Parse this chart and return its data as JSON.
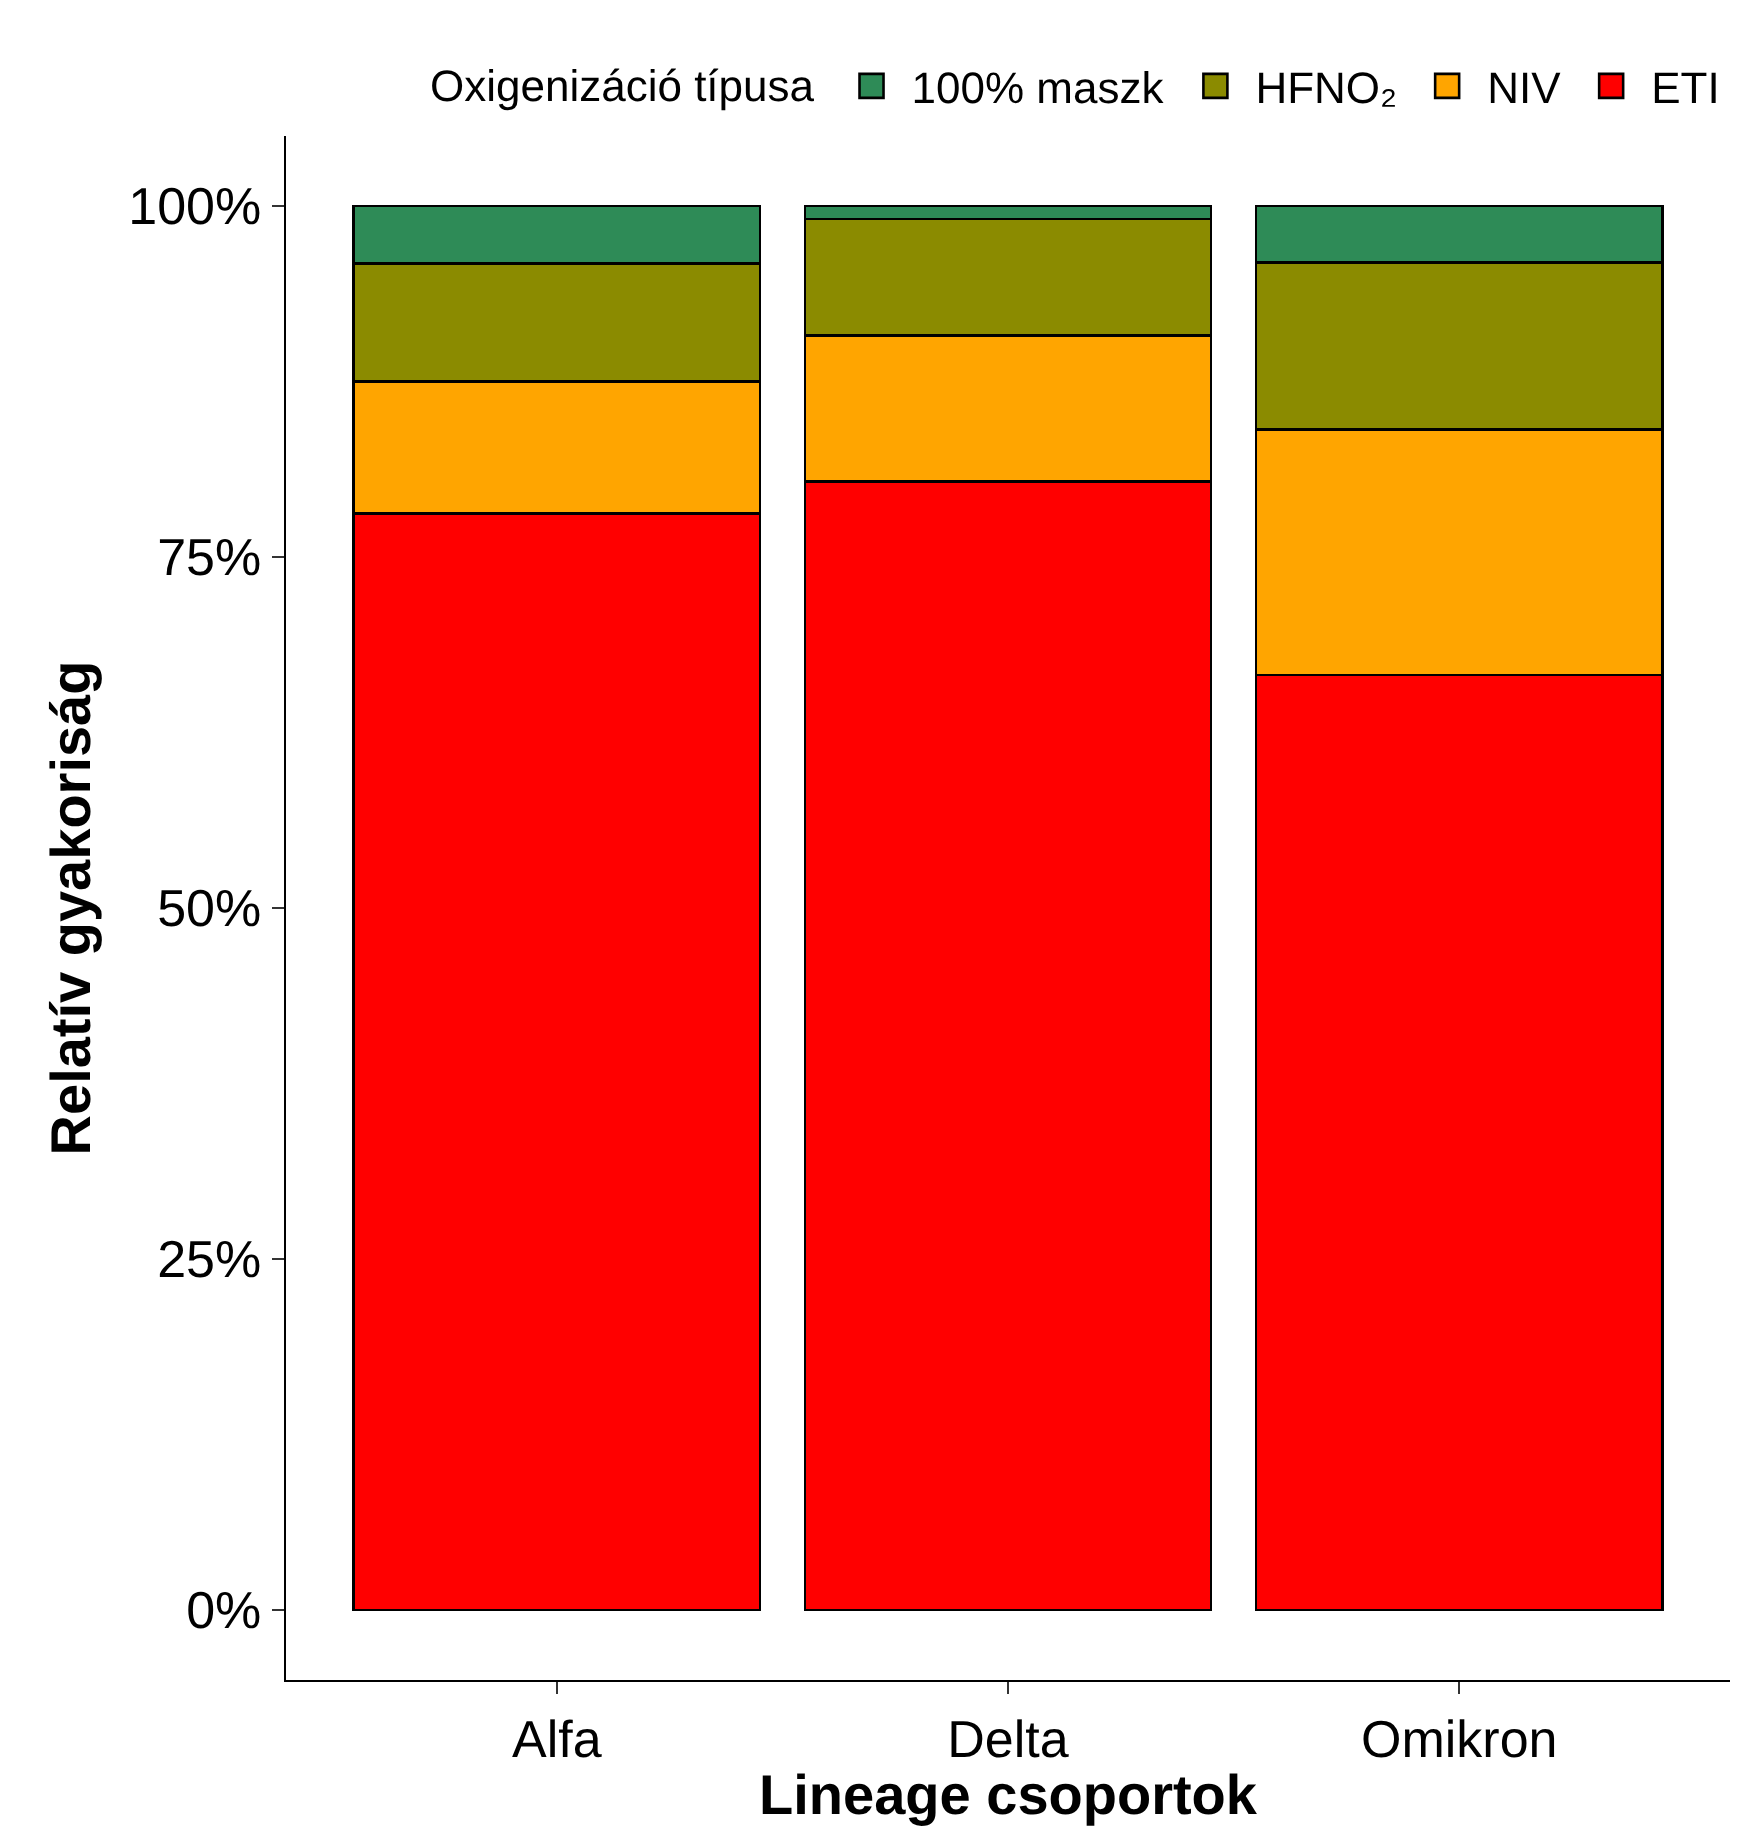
{
  "chart_data": {
    "type": "bar",
    "stacked": true,
    "xlabel": "Lineage csoportok",
    "ylabel": "Relatív gyakoriság",
    "legend_title": "Oxigenizáció típusa",
    "categories": [
      "Alfa",
      "Delta",
      "Omikron"
    ],
    "series": [
      {
        "name": "ETI",
        "color": "#ff0000",
        "values": [
          78.1,
          80.4,
          66.6
        ]
      },
      {
        "name": "NIV",
        "color": "#ffa500",
        "values": [
          9.4,
          10.4,
          17.5
        ]
      },
      {
        "name": "HFNO₂",
        "color": "#8b8b00",
        "values": [
          8.4,
          8.3,
          11.9
        ]
      },
      {
        "name": "100% maszk",
        "color": "#2e8b57",
        "values": [
          4.1,
          0.9,
          4.0
        ]
      }
    ],
    "ylim": [
      -5,
      105
    ],
    "yticks": [
      {
        "value": 0,
        "label": "0%"
      },
      {
        "value": 25,
        "label": "25%"
      },
      {
        "value": 50,
        "label": "50%"
      },
      {
        "value": 75,
        "label": "75%"
      },
      {
        "value": 100,
        "label": "100%"
      }
    ],
    "grid": false,
    "legend": "top"
  }
}
